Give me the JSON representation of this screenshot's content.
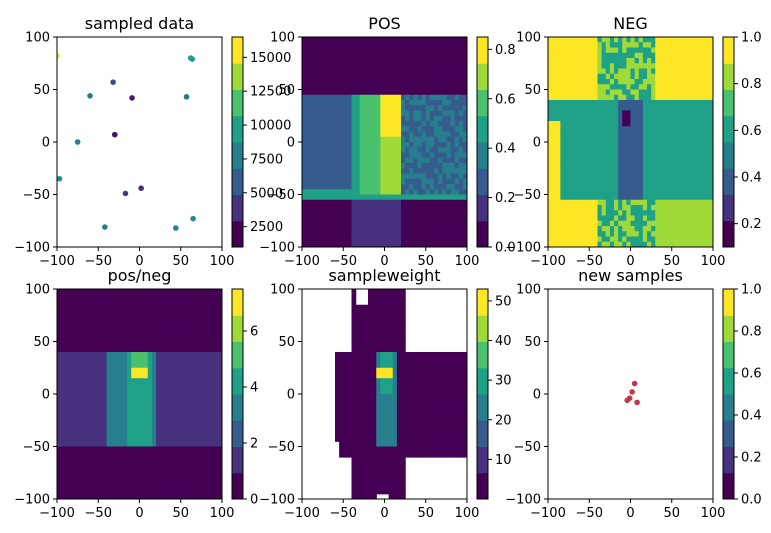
{
  "colors": {
    "viridis": [
      "#440154",
      "#46327e",
      "#365c8d",
      "#277f8e",
      "#1fa187",
      "#4ac16d",
      "#a0da39",
      "#fde725"
    ],
    "new_sample_color": "#c0394b"
  },
  "chart_data": [
    {
      "type": "scatter",
      "title": "sampled data",
      "xlim": [
        -100,
        100
      ],
      "ylim": [
        -100,
        100
      ],
      "xticks": [
        "−100",
        "−50",
        "0",
        "50",
        "100"
      ],
      "yticks": [
        "100",
        "50",
        "0",
        "−50",
        "−100"
      ],
      "points": [
        {
          "x": -100,
          "y": 82,
          "v": 16000
        },
        {
          "x": -97,
          "y": -35,
          "v": 8500
        },
        {
          "x": -75,
          "y": 0,
          "v": 7500
        },
        {
          "x": -60,
          "y": 44,
          "v": 7500
        },
        {
          "x": -32,
          "y": 57,
          "v": 4500
        },
        {
          "x": -9,
          "y": 42,
          "v": 2200
        },
        {
          "x": -30,
          "y": 7,
          "v": 1800
        },
        {
          "x": -17,
          "y": -49,
          "v": 3500
        },
        {
          "x": 2,
          "y": -44,
          "v": 3000
        },
        {
          "x": -42,
          "y": -81,
          "v": 7500
        },
        {
          "x": 44,
          "y": -82,
          "v": 8000
        },
        {
          "x": 57,
          "y": 43,
          "v": 7000
        },
        {
          "x": 62,
          "y": 80,
          "v": 10000
        },
        {
          "x": 64,
          "y": 79,
          "v": 9500
        },
        {
          "x": 65,
          "y": -73,
          "v": 8500
        }
      ],
      "colorbar": {
        "min": 1000,
        "max": 16500,
        "ticks": [
          2500,
          5000,
          7500,
          10000,
          12500,
          15000
        ],
        "tick_labels": [
          "2500",
          "5000",
          "7500",
          "10000",
          "12500",
          "15000"
        ]
      }
    },
    {
      "type": "heatmap",
      "title": "POS",
      "xlim": [
        -100,
        100
      ],
      "ylim": [
        -100,
        100
      ],
      "xticks": [
        "−100",
        "−50",
        "0",
        "50",
        "100"
      ],
      "yticks": [
        "100",
        "50",
        "0",
        "−50",
        "−100"
      ],
      "colorbar": {
        "min": 0,
        "max": 0.85,
        "ticks": [
          0,
          0.2,
          0.4,
          0.6,
          0.8
        ],
        "tick_labels": [
          "0.0",
          "0.2",
          "0.4",
          "0.6",
          "0.8"
        ]
      }
    },
    {
      "type": "heatmap",
      "title": "NEG",
      "xlim": [
        -100,
        100
      ],
      "ylim": [
        -100,
        100
      ],
      "xticks": [
        "−100",
        "−50",
        "0",
        "50",
        "100"
      ],
      "yticks": [
        "100",
        "50",
        "0",
        "−50",
        "−100"
      ],
      "colorbar": {
        "min": 0.1,
        "max": 1.0,
        "ticks": [
          0.2,
          0.4,
          0.6,
          0.8,
          1.0
        ],
        "tick_labels": [
          "0.2",
          "0.4",
          "0.6",
          "0.8",
          "1.0"
        ]
      }
    },
    {
      "type": "heatmap",
      "title": "pos/neg",
      "xlim": [
        -100,
        100
      ],
      "ylim": [
        -100,
        100
      ],
      "xticks": [
        "−100",
        "−50",
        "0",
        "50",
        "100"
      ],
      "yticks": [
        "100",
        "50",
        "0",
        "−50",
        "−100"
      ],
      "colorbar": {
        "min": 0,
        "max": 7.5,
        "ticks": [
          0,
          2,
          4,
          6
        ],
        "tick_labels": [
          "0",
          "2",
          "4",
          "6"
        ]
      }
    },
    {
      "type": "heatmap",
      "title": "sampleweight",
      "xlim": [
        -100,
        100
      ],
      "ylim": [
        -100,
        100
      ],
      "xticks": [
        "−100",
        "−50",
        "0",
        "50",
        "100"
      ],
      "yticks": [
        "100",
        "50",
        "0",
        "−50",
        "−100"
      ],
      "colorbar": {
        "min": 0,
        "max": 53,
        "ticks": [
          10,
          20,
          30,
          40,
          50
        ],
        "tick_labels": [
          "10",
          "20",
          "30",
          "40",
          "50"
        ]
      }
    },
    {
      "type": "scatter",
      "title": "new samples",
      "xlim": [
        -100,
        100
      ],
      "ylim": [
        -100,
        100
      ],
      "xticks": [
        "−100",
        "−50",
        "0",
        "50",
        "100"
      ],
      "yticks": [
        "100",
        "50",
        "0",
        "−50",
        "−100"
      ],
      "points": [
        {
          "x": 5,
          "y": 10
        },
        {
          "x": 2,
          "y": 2
        },
        {
          "x": -1,
          "y": -4
        },
        {
          "x": -4,
          "y": -6
        },
        {
          "x": 8,
          "y": -8
        }
      ],
      "colorbar": {
        "min": 0,
        "max": 1.0,
        "ticks": [
          0,
          0.2,
          0.4,
          0.6,
          0.8,
          1.0
        ],
        "tick_labels": [
          "0.0",
          "0.2",
          "0.4",
          "0.6",
          "0.8",
          "1.0"
        ]
      }
    }
  ]
}
